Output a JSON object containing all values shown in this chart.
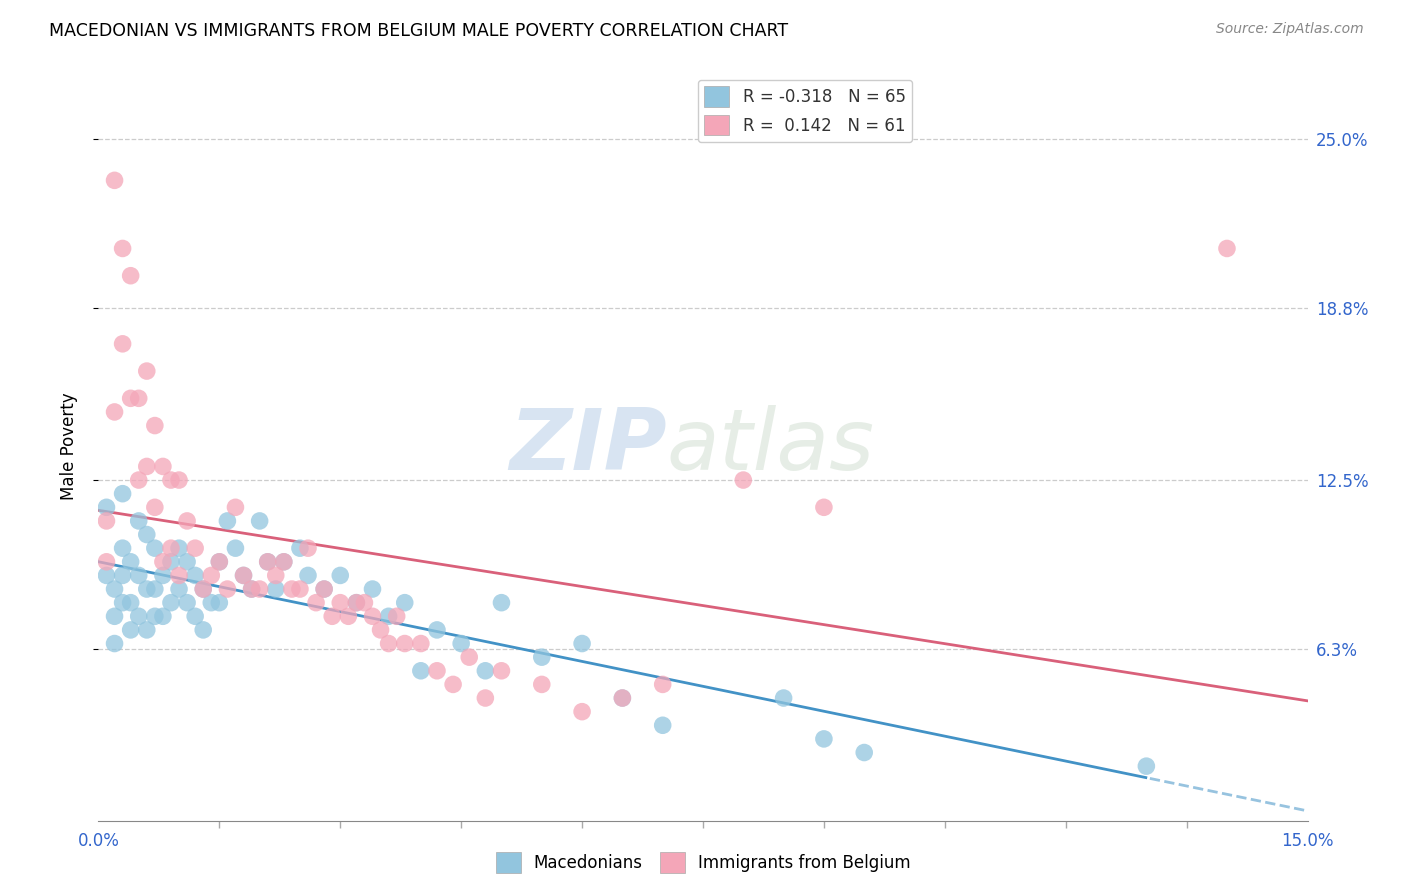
{
  "title": "MACEDONIAN VS IMMIGRANTS FROM BELGIUM MALE POVERTY CORRELATION CHART",
  "source": "Source: ZipAtlas.com",
  "ylabel": "Male Poverty",
  "ytick_labels": [
    "25.0%",
    "18.8%",
    "12.5%",
    "6.3%"
  ],
  "ytick_values": [
    0.25,
    0.188,
    0.125,
    0.063
  ],
  "xmin": 0.0,
  "xmax": 0.15,
  "ymin": 0.0,
  "ymax": 0.275,
  "legend_blue_r": "R = -0.318",
  "legend_blue_n": "N = 65",
  "legend_pink_r": "R =  0.142",
  "legend_pink_n": "N = 61",
  "blue_color": "#92c5de",
  "pink_color": "#f4a6b8",
  "blue_line_color": "#4292c6",
  "pink_line_color": "#d9607a",
  "watermark_zip": "ZIP",
  "watermark_atlas": "atlas",
  "blue_scatter_x": [
    0.001,
    0.001,
    0.002,
    0.002,
    0.002,
    0.003,
    0.003,
    0.003,
    0.003,
    0.004,
    0.004,
    0.004,
    0.005,
    0.005,
    0.005,
    0.006,
    0.006,
    0.006,
    0.007,
    0.007,
    0.007,
    0.008,
    0.008,
    0.009,
    0.009,
    0.01,
    0.01,
    0.011,
    0.011,
    0.012,
    0.012,
    0.013,
    0.013,
    0.014,
    0.015,
    0.015,
    0.016,
    0.017,
    0.018,
    0.019,
    0.02,
    0.021,
    0.022,
    0.023,
    0.025,
    0.026,
    0.028,
    0.03,
    0.032,
    0.034,
    0.036,
    0.038,
    0.04,
    0.042,
    0.045,
    0.048,
    0.05,
    0.055,
    0.06,
    0.065,
    0.07,
    0.085,
    0.09,
    0.095,
    0.13
  ],
  "blue_scatter_y": [
    0.115,
    0.09,
    0.085,
    0.075,
    0.065,
    0.12,
    0.1,
    0.09,
    0.08,
    0.095,
    0.08,
    0.07,
    0.11,
    0.09,
    0.075,
    0.105,
    0.085,
    0.07,
    0.1,
    0.085,
    0.075,
    0.09,
    0.075,
    0.095,
    0.08,
    0.1,
    0.085,
    0.095,
    0.08,
    0.09,
    0.075,
    0.085,
    0.07,
    0.08,
    0.095,
    0.08,
    0.11,
    0.1,
    0.09,
    0.085,
    0.11,
    0.095,
    0.085,
    0.095,
    0.1,
    0.09,
    0.085,
    0.09,
    0.08,
    0.085,
    0.075,
    0.08,
    0.055,
    0.07,
    0.065,
    0.055,
    0.08,
    0.06,
    0.065,
    0.045,
    0.035,
    0.045,
    0.03,
    0.025,
    0.02
  ],
  "pink_scatter_x": [
    0.001,
    0.001,
    0.002,
    0.002,
    0.003,
    0.003,
    0.004,
    0.004,
    0.005,
    0.005,
    0.006,
    0.006,
    0.007,
    0.007,
    0.008,
    0.008,
    0.009,
    0.009,
    0.01,
    0.01,
    0.011,
    0.012,
    0.013,
    0.014,
    0.015,
    0.016,
    0.017,
    0.018,
    0.019,
    0.02,
    0.021,
    0.022,
    0.023,
    0.024,
    0.025,
    0.026,
    0.027,
    0.028,
    0.029,
    0.03,
    0.031,
    0.032,
    0.033,
    0.034,
    0.035,
    0.036,
    0.037,
    0.038,
    0.04,
    0.042,
    0.044,
    0.046,
    0.048,
    0.05,
    0.055,
    0.06,
    0.065,
    0.07,
    0.08,
    0.09,
    0.14
  ],
  "pink_scatter_y": [
    0.11,
    0.095,
    0.235,
    0.15,
    0.21,
    0.175,
    0.2,
    0.155,
    0.155,
    0.125,
    0.165,
    0.13,
    0.145,
    0.115,
    0.13,
    0.095,
    0.125,
    0.1,
    0.125,
    0.09,
    0.11,
    0.1,
    0.085,
    0.09,
    0.095,
    0.085,
    0.115,
    0.09,
    0.085,
    0.085,
    0.095,
    0.09,
    0.095,
    0.085,
    0.085,
    0.1,
    0.08,
    0.085,
    0.075,
    0.08,
    0.075,
    0.08,
    0.08,
    0.075,
    0.07,
    0.065,
    0.075,
    0.065,
    0.065,
    0.055,
    0.05,
    0.06,
    0.045,
    0.055,
    0.05,
    0.04,
    0.045,
    0.05,
    0.125,
    0.115,
    0.21
  ]
}
